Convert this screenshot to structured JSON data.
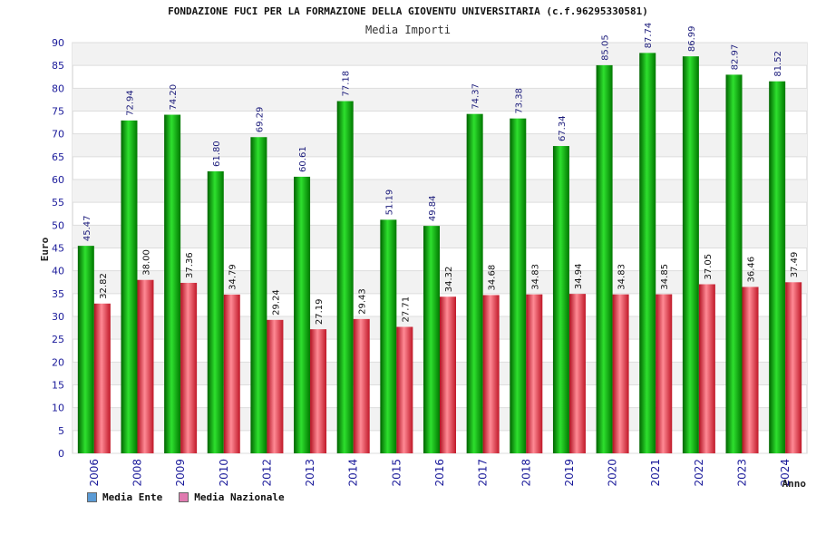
{
  "chart_data": {
    "type": "bar",
    "title": "FONDAZIONE FUCI PER LA FORMAZIONE DELLA GIOVENTU UNIVERSITARIA (c.f.96295330581)",
    "subtitle": "Media Importi",
    "xlabel": "Anno",
    "ylabel": "Euro",
    "ylim": [
      0,
      90
    ],
    "ytick_step": 5,
    "categories": [
      "2006",
      "2008",
      "2009",
      "2010",
      "2012",
      "2013",
      "2014",
      "2015",
      "2016",
      "2017",
      "2018",
      "2019",
      "2020",
      "2021",
      "2022",
      "2023",
      "2024"
    ],
    "series": [
      {
        "name": "Media Ente",
        "color": "#00a000",
        "values": [
          45.47,
          72.94,
          74.2,
          61.8,
          69.29,
          60.61,
          77.18,
          51.19,
          49.84,
          74.37,
          73.38,
          67.34,
          85.05,
          87.74,
          86.99,
          82.97,
          81.52
        ]
      },
      {
        "name": "Media Nazionale",
        "color": "#e03040",
        "values": [
          32.82,
          38.0,
          37.36,
          34.79,
          29.24,
          27.19,
          29.43,
          27.71,
          34.32,
          34.68,
          34.83,
          34.94,
          34.83,
          34.85,
          37.05,
          36.46,
          37.49
        ]
      }
    ],
    "legend": [
      {
        "label": "Media Ente",
        "color": "#5b9bd5"
      },
      {
        "label": "Media Nazionale",
        "color": "#e07bb0"
      }
    ]
  }
}
